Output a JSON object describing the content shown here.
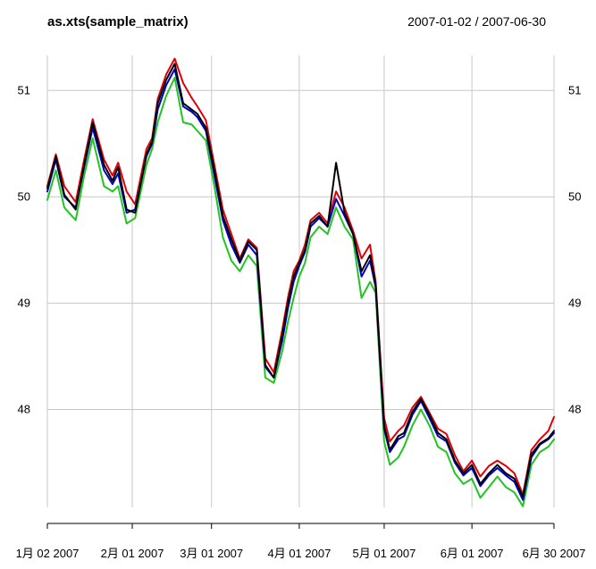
{
  "chart_data": {
    "type": "line",
    "title": "as.xts(sample_matrix)",
    "date_range_label": "2007-01-02 / 2007-06-30",
    "x_start": "2007-01-02",
    "x_end": "2007-06-30",
    "ylim": [
      47.08,
      51.33
    ],
    "grid": true,
    "y_ticks": [
      {
        "value": 48,
        "label": "48"
      },
      {
        "value": 49,
        "label": "49"
      },
      {
        "value": 50,
        "label": "50"
      },
      {
        "value": 51,
        "label": "51"
      }
    ],
    "x_ticks": [
      {
        "date": "2007-01-02",
        "label": "1月 02 2007"
      },
      {
        "date": "2007-02-01",
        "label": "2月 01 2007"
      },
      {
        "date": "2007-03-01",
        "label": "3月 01 2007"
      },
      {
        "date": "2007-04-01",
        "label": "4月 01 2007"
      },
      {
        "date": "2007-05-01",
        "label": "5月 01 2007"
      },
      {
        "date": "2007-06-01",
        "label": "6月 01 2007"
      },
      {
        "date": "2007-06-30",
        "label": "6月 30 2007"
      }
    ],
    "colors": {
      "grid": "#c8c8c8",
      "axis": "#000000"
    },
    "series": [
      {
        "color": "#e0000b",
        "x": [
          "2007-01-02",
          "2007-01-05",
          "2007-01-08",
          "2007-01-12",
          "2007-01-15",
          "2007-01-18",
          "2007-01-22",
          "2007-01-25",
          "2007-01-27",
          "2007-01-30",
          "2007-02-02",
          "2007-02-06",
          "2007-02-08",
          "2007-02-10",
          "2007-02-13",
          "2007-02-16",
          "2007-02-19",
          "2007-02-22",
          "2007-02-24",
          "2007-02-27",
          "2007-03-02",
          "2007-03-05",
          "2007-03-08",
          "2007-03-11",
          "2007-03-14",
          "2007-03-17",
          "2007-03-20",
          "2007-03-23",
          "2007-03-26",
          "2007-03-28",
          "2007-03-30",
          "2007-04-01",
          "2007-04-03",
          "2007-04-05",
          "2007-04-08",
          "2007-04-11",
          "2007-04-14",
          "2007-04-17",
          "2007-04-20",
          "2007-04-23",
          "2007-04-26",
          "2007-04-28",
          "2007-05-01",
          "2007-05-03",
          "2007-05-06",
          "2007-05-08",
          "2007-05-11",
          "2007-05-14",
          "2007-05-17",
          "2007-05-20",
          "2007-05-23",
          "2007-05-26",
          "2007-05-29",
          "2007-06-01",
          "2007-06-04",
          "2007-06-07",
          "2007-06-10",
          "2007-06-13",
          "2007-06-16",
          "2007-06-19",
          "2007-06-22",
          "2007-06-25",
          "2007-06-28",
          "2007-06-30"
        ],
        "y": [
          50.1,
          50.4,
          50.1,
          49.95,
          50.35,
          50.73,
          50.35,
          50.2,
          50.32,
          50.05,
          49.93,
          50.45,
          50.55,
          50.92,
          51.15,
          51.3,
          51.07,
          50.93,
          50.85,
          50.72,
          50.3,
          49.88,
          49.65,
          49.42,
          49.6,
          49.52,
          48.48,
          48.35,
          48.75,
          49.05,
          49.3,
          49.4,
          49.55,
          49.78,
          49.85,
          49.75,
          50.05,
          49.9,
          49.68,
          49.42,
          49.55,
          49.2,
          47.92,
          47.7,
          47.8,
          47.85,
          48.02,
          48.12,
          47.97,
          47.82,
          47.77,
          47.57,
          47.42,
          47.52,
          47.37,
          47.47,
          47.52,
          47.47,
          47.4,
          47.2,
          47.62,
          47.72,
          47.8,
          47.93
        ]
      },
      {
        "color": "#22c422",
        "x": [
          "2007-01-02",
          "2007-01-05",
          "2007-01-08",
          "2007-01-12",
          "2007-01-15",
          "2007-01-18",
          "2007-01-22",
          "2007-01-25",
          "2007-01-27",
          "2007-01-30",
          "2007-02-02",
          "2007-02-06",
          "2007-02-08",
          "2007-02-10",
          "2007-02-13",
          "2007-02-16",
          "2007-02-19",
          "2007-02-22",
          "2007-02-24",
          "2007-02-27",
          "2007-03-02",
          "2007-03-05",
          "2007-03-08",
          "2007-03-11",
          "2007-03-14",
          "2007-03-17",
          "2007-03-20",
          "2007-03-23",
          "2007-03-26",
          "2007-03-28",
          "2007-03-30",
          "2007-04-01",
          "2007-04-03",
          "2007-04-05",
          "2007-04-08",
          "2007-04-11",
          "2007-04-14",
          "2007-04-17",
          "2007-04-20",
          "2007-04-23",
          "2007-04-26",
          "2007-04-28",
          "2007-05-01",
          "2007-05-03",
          "2007-05-06",
          "2007-05-08",
          "2007-05-11",
          "2007-05-14",
          "2007-05-17",
          "2007-05-20",
          "2007-05-23",
          "2007-05-26",
          "2007-05-29",
          "2007-06-01",
          "2007-06-04",
          "2007-06-07",
          "2007-06-10",
          "2007-06-13",
          "2007-06-16",
          "2007-06-19",
          "2007-06-22",
          "2007-06-25",
          "2007-06-28",
          "2007-06-30"
        ],
        "y": [
          49.97,
          50.25,
          49.9,
          49.78,
          50.2,
          50.55,
          50.1,
          50.05,
          50.1,
          49.75,
          49.8,
          50.3,
          50.45,
          50.7,
          50.95,
          51.12,
          50.7,
          50.68,
          50.62,
          50.53,
          50.1,
          49.62,
          49.4,
          49.3,
          49.45,
          49.35,
          48.3,
          48.25,
          48.55,
          48.82,
          49.05,
          49.25,
          49.38,
          49.62,
          49.72,
          49.65,
          49.9,
          49.72,
          49.6,
          49.05,
          49.2,
          49.1,
          47.7,
          47.48,
          47.55,
          47.65,
          47.85,
          48.0,
          47.85,
          47.65,
          47.6,
          47.4,
          47.3,
          47.35,
          47.17,
          47.27,
          47.37,
          47.27,
          47.22,
          47.09,
          47.48,
          47.6,
          47.65,
          47.72
        ]
      },
      {
        "color": "#0000cc",
        "x": [
          "2007-01-02",
          "2007-01-05",
          "2007-01-08",
          "2007-01-12",
          "2007-01-15",
          "2007-01-18",
          "2007-01-22",
          "2007-01-25",
          "2007-01-27",
          "2007-01-30",
          "2007-02-02",
          "2007-02-06",
          "2007-02-08",
          "2007-02-10",
          "2007-02-13",
          "2007-02-16",
          "2007-02-19",
          "2007-02-22",
          "2007-02-24",
          "2007-02-27",
          "2007-03-02",
          "2007-03-05",
          "2007-03-08",
          "2007-03-11",
          "2007-03-14",
          "2007-03-17",
          "2007-03-20",
          "2007-03-23",
          "2007-03-26",
          "2007-03-28",
          "2007-03-30",
          "2007-04-01",
          "2007-04-03",
          "2007-04-05",
          "2007-04-08",
          "2007-04-11",
          "2007-04-14",
          "2007-04-17",
          "2007-04-20",
          "2007-04-23",
          "2007-04-26",
          "2007-04-28",
          "2007-05-01",
          "2007-05-03",
          "2007-05-06",
          "2007-05-08",
          "2007-05-11",
          "2007-05-14",
          "2007-05-17",
          "2007-05-20",
          "2007-05-23",
          "2007-05-26",
          "2007-05-29",
          "2007-06-01",
          "2007-06-04",
          "2007-06-07",
          "2007-06-10",
          "2007-06-13",
          "2007-06-16",
          "2007-06-19",
          "2007-06-22",
          "2007-06-25",
          "2007-06-28",
          "2007-06-30"
        ],
        "y": [
          50.05,
          50.35,
          50.0,
          49.9,
          50.28,
          50.65,
          50.25,
          50.12,
          50.22,
          49.85,
          49.88,
          50.38,
          50.5,
          50.82,
          51.05,
          51.2,
          50.85,
          50.8,
          50.75,
          50.62,
          50.2,
          49.78,
          49.55,
          49.38,
          49.55,
          49.45,
          48.4,
          48.3,
          48.65,
          48.95,
          49.2,
          49.35,
          49.48,
          49.72,
          49.8,
          49.72,
          49.98,
          49.82,
          49.65,
          49.25,
          49.4,
          49.15,
          47.82,
          47.6,
          47.72,
          47.75,
          47.95,
          48.08,
          47.92,
          47.75,
          47.7,
          47.5,
          47.38,
          47.45,
          47.28,
          47.38,
          47.45,
          47.38,
          47.32,
          47.15,
          47.55,
          47.67,
          47.72,
          47.78
        ]
      },
      {
        "color": "#000000",
        "x": [
          "2007-01-02",
          "2007-01-05",
          "2007-01-08",
          "2007-01-12",
          "2007-01-15",
          "2007-01-18",
          "2007-01-22",
          "2007-01-25",
          "2007-01-27",
          "2007-01-30",
          "2007-02-02",
          "2007-02-06",
          "2007-02-08",
          "2007-02-10",
          "2007-02-13",
          "2007-02-16",
          "2007-02-19",
          "2007-02-22",
          "2007-02-24",
          "2007-02-27",
          "2007-03-02",
          "2007-03-05",
          "2007-03-08",
          "2007-03-11",
          "2007-03-14",
          "2007-03-17",
          "2007-03-20",
          "2007-03-23",
          "2007-03-26",
          "2007-03-28",
          "2007-03-30",
          "2007-04-01",
          "2007-04-03",
          "2007-04-05",
          "2007-04-08",
          "2007-04-11",
          "2007-04-14",
          "2007-04-17",
          "2007-04-20",
          "2007-04-23",
          "2007-04-26",
          "2007-04-28",
          "2007-05-01",
          "2007-05-03",
          "2007-05-06",
          "2007-05-08",
          "2007-05-11",
          "2007-05-14",
          "2007-05-17",
          "2007-05-20",
          "2007-05-23",
          "2007-05-26",
          "2007-05-29",
          "2007-06-01",
          "2007-06-04",
          "2007-06-07",
          "2007-06-10",
          "2007-06-13",
          "2007-06-16",
          "2007-06-19",
          "2007-06-22",
          "2007-06-25",
          "2007-06-28",
          "2007-06-30"
        ],
        "y": [
          50.08,
          50.38,
          50.02,
          49.88,
          50.3,
          50.7,
          50.3,
          50.15,
          50.28,
          49.88,
          49.85,
          50.4,
          50.52,
          50.88,
          51.1,
          51.25,
          50.88,
          50.82,
          50.78,
          50.65,
          50.25,
          49.82,
          49.6,
          49.4,
          49.58,
          49.5,
          48.42,
          48.3,
          48.7,
          49.0,
          49.25,
          49.38,
          49.5,
          49.75,
          49.82,
          49.72,
          50.32,
          49.85,
          49.65,
          49.3,
          49.45,
          49.18,
          47.85,
          47.62,
          47.75,
          47.78,
          47.98,
          48.1,
          47.95,
          47.78,
          47.72,
          47.52,
          47.4,
          47.48,
          47.3,
          47.4,
          47.48,
          47.4,
          47.35,
          47.18,
          47.58,
          47.68,
          47.73,
          47.8
        ]
      }
    ]
  }
}
